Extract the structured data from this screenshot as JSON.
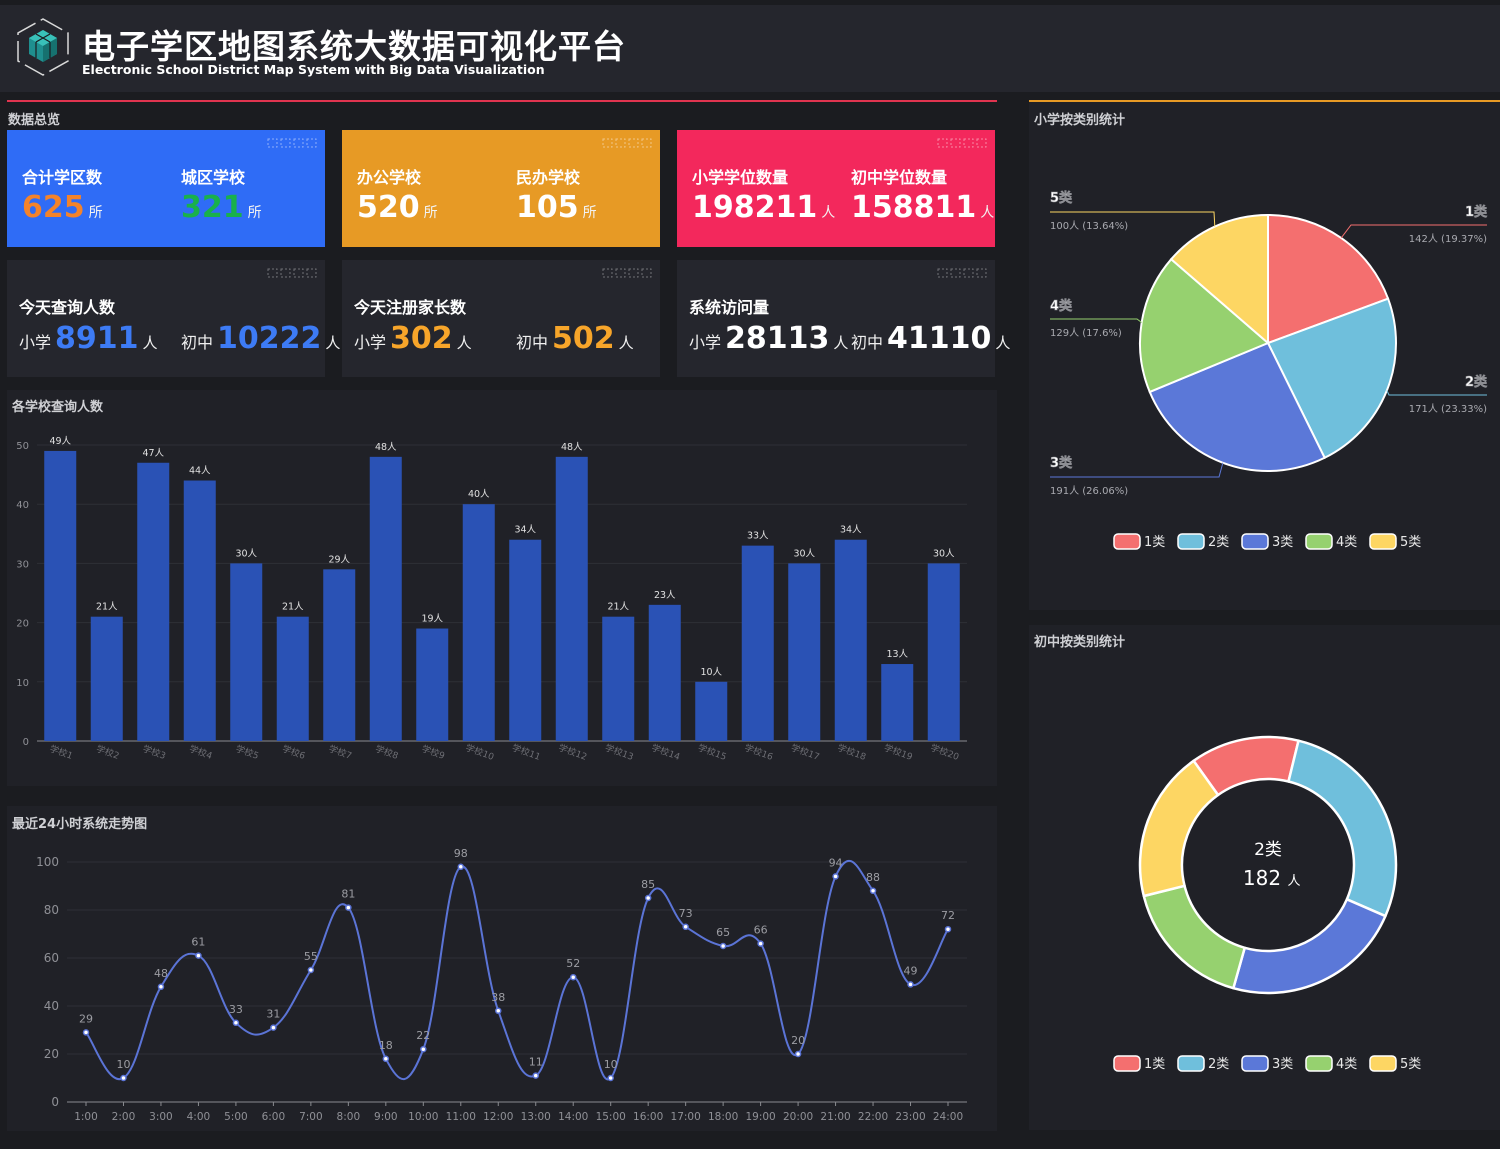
{
  "header": {
    "title_cn": "电子学区地图系统大数据可视化平台",
    "title_en": "Electronic School District Map System with Big Data Visualization",
    "logo_icon": "cube-hexagon-logo-icon"
  },
  "overview": {
    "title": "数据总览",
    "cards_top": [
      {
        "color": "#2f6cf6",
        "items": [
          {
            "label": "合计学区数",
            "value": "625",
            "unit": "所",
            "value_color": "#f4832a"
          },
          {
            "label": "城区学校",
            "value": "321",
            "unit": "所",
            "value_color": "#19b14b"
          }
        ]
      },
      {
        "color": "#e79a25",
        "items": [
          {
            "label": "办公学校",
            "value": "520",
            "unit": "所",
            "value_color": "#ffffff"
          },
          {
            "label": "民办学校",
            "value": "105",
            "unit": "所",
            "value_color": "#ffffff"
          }
        ]
      },
      {
        "color": "#f3285c",
        "items": [
          {
            "label": "小学学位数量",
            "value": "198211",
            "unit": "人",
            "value_color": "#ffffff"
          },
          {
            "label": "初中学位数量",
            "value": "158811",
            "unit": "人",
            "value_color": "#ffffff"
          }
        ]
      }
    ],
    "cards_bottom": [
      {
        "label": "今天查询人数",
        "value_color": "#3d7bf5",
        "items": [
          {
            "prefix": "小学",
            "value": "8911",
            "unit": "人"
          },
          {
            "prefix": "初中",
            "value": "10222",
            "unit": "人"
          }
        ]
      },
      {
        "label": "今天注册家长数",
        "value_color": "#f7a52a",
        "items": [
          {
            "prefix": "小学",
            "value": "302",
            "unit": "人"
          },
          {
            "prefix": "初中",
            "value": "502",
            "unit": "人"
          }
        ]
      },
      {
        "label": "系统访问量",
        "value_color": "#ffffff",
        "items": [
          {
            "prefix": "小学",
            "value": "28113",
            "unit": "人"
          },
          {
            "prefix": "初中",
            "value": "41110",
            "unit": "人"
          }
        ]
      }
    ]
  },
  "colors": {
    "bar": "#2a52b5",
    "line": "#5b74d6",
    "pie": [
      "#f46f6f",
      "#6fbfdc",
      "#5b78d8",
      "#96d16f",
      "#fdd663"
    ],
    "overview_line": "#e0344f",
    "right_line": "#e79a25"
  },
  "chart_data": [
    {
      "type": "bar",
      "title": "各学校查询人数",
      "categories": [
        "学校1",
        "学校2",
        "学校3",
        "学校4",
        "学校5",
        "学校6",
        "学校7",
        "学校8",
        "学校9",
        "学校10",
        "学校11",
        "学校12",
        "学校13",
        "学校14",
        "学校15",
        "学校16",
        "学校17",
        "学校18",
        "学校19",
        "学校20"
      ],
      "values": [
        49,
        21,
        47,
        44,
        30,
        21,
        29,
        48,
        19,
        40,
        34,
        48,
        21,
        23,
        10,
        33,
        30,
        34,
        13,
        30
      ],
      "label_suffix": "人",
      "ylim": [
        0,
        50
      ],
      "yticks": [
        "0",
        "10",
        "20",
        "30",
        "40",
        "50"
      ],
      "grid": true
    },
    {
      "type": "line",
      "title": "最近24小时系统走势图",
      "categories": [
        "1:00",
        "2:00",
        "3:00",
        "4:00",
        "5:00",
        "6:00",
        "7:00",
        "8:00",
        "9:00",
        "10:00",
        "11:00",
        "12:00",
        "13:00",
        "14:00",
        "15:00",
        "16:00",
        "17:00",
        "18:00",
        "19:00",
        "20:00",
        "21:00",
        "22:00",
        "23:00",
        "24:00"
      ],
      "values": [
        29,
        10,
        48,
        61,
        33,
        31,
        55,
        81,
        18,
        22,
        98,
        38,
        11,
        52,
        10,
        85,
        73,
        65,
        66,
        20,
        94,
        88,
        49,
        72
      ],
      "ylim": [
        0,
        100
      ],
      "yticks": [
        "0",
        "20",
        "40",
        "60",
        "80",
        "100"
      ],
      "smooth": true,
      "grid": true
    },
    {
      "type": "pie",
      "title": "小学按类别统计",
      "slices": [
        {
          "name": "1类",
          "value": 142,
          "label": "142人 (19.37%)"
        },
        {
          "name": "2类",
          "value": 171,
          "label": "171人 (23.33%)"
        },
        {
          "name": "3类",
          "value": 191,
          "label": "191人 (26.06%)"
        },
        {
          "name": "4类",
          "value": 129,
          "label": "129人 (17.6%)"
        },
        {
          "name": "5类",
          "value": 100,
          "label": "100人 (13.64%)"
        }
      ],
      "legend": [
        "1类",
        "2类",
        "3类",
        "4类",
        "5类"
      ],
      "legend_position": "bottom"
    },
    {
      "type": "pie",
      "subtype": "donut",
      "title": "初中按类别统计",
      "slices": [
        {
          "name": "1类",
          "value": 90
        },
        {
          "name": "2类",
          "value": 182
        },
        {
          "name": "3类",
          "value": 150
        },
        {
          "name": "4类",
          "value": 110
        },
        {
          "name": "5类",
          "value": 125
        }
      ],
      "center_label": "2类",
      "center_value": "182",
      "center_unit": "人",
      "legend": [
        "1类",
        "2类",
        "3类",
        "4类",
        "5类"
      ],
      "legend_position": "bottom"
    }
  ]
}
